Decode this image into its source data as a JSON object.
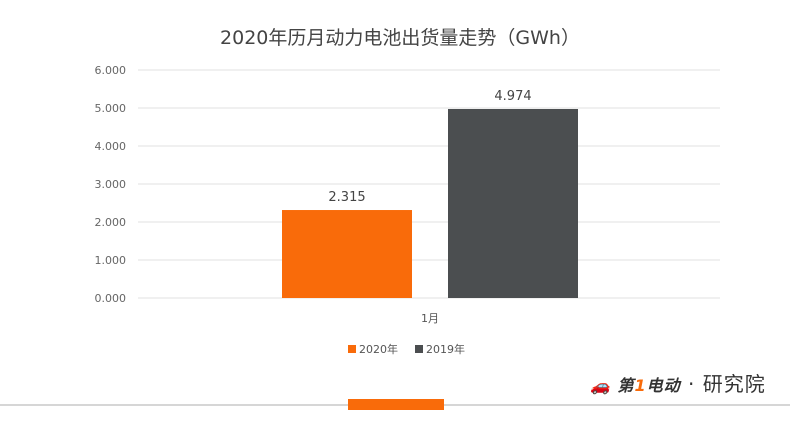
{
  "chart_data": {
    "type": "bar",
    "title": "2020年历月动力电池出货量走势（GWh）",
    "categories": [
      "1月"
    ],
    "series": [
      {
        "name": "2020年",
        "values": [
          2.315
        ],
        "color": "#f96b0a"
      },
      {
        "name": "2019年",
        "values": [
          4.974
        ],
        "color": "#4b4e50"
      }
    ],
    "data_labels": [
      "2.315",
      "4.974"
    ],
    "yticks": [
      "0.000",
      "1.000",
      "2.000",
      "3.000",
      "4.000",
      "5.000",
      "6.000"
    ],
    "ylim": [
      0,
      6
    ],
    "grid": true,
    "legend": "bottom"
  },
  "watermark": {
    "brand": "第1电动",
    "suffix": "研究院"
  },
  "accent": "#f96b0a"
}
